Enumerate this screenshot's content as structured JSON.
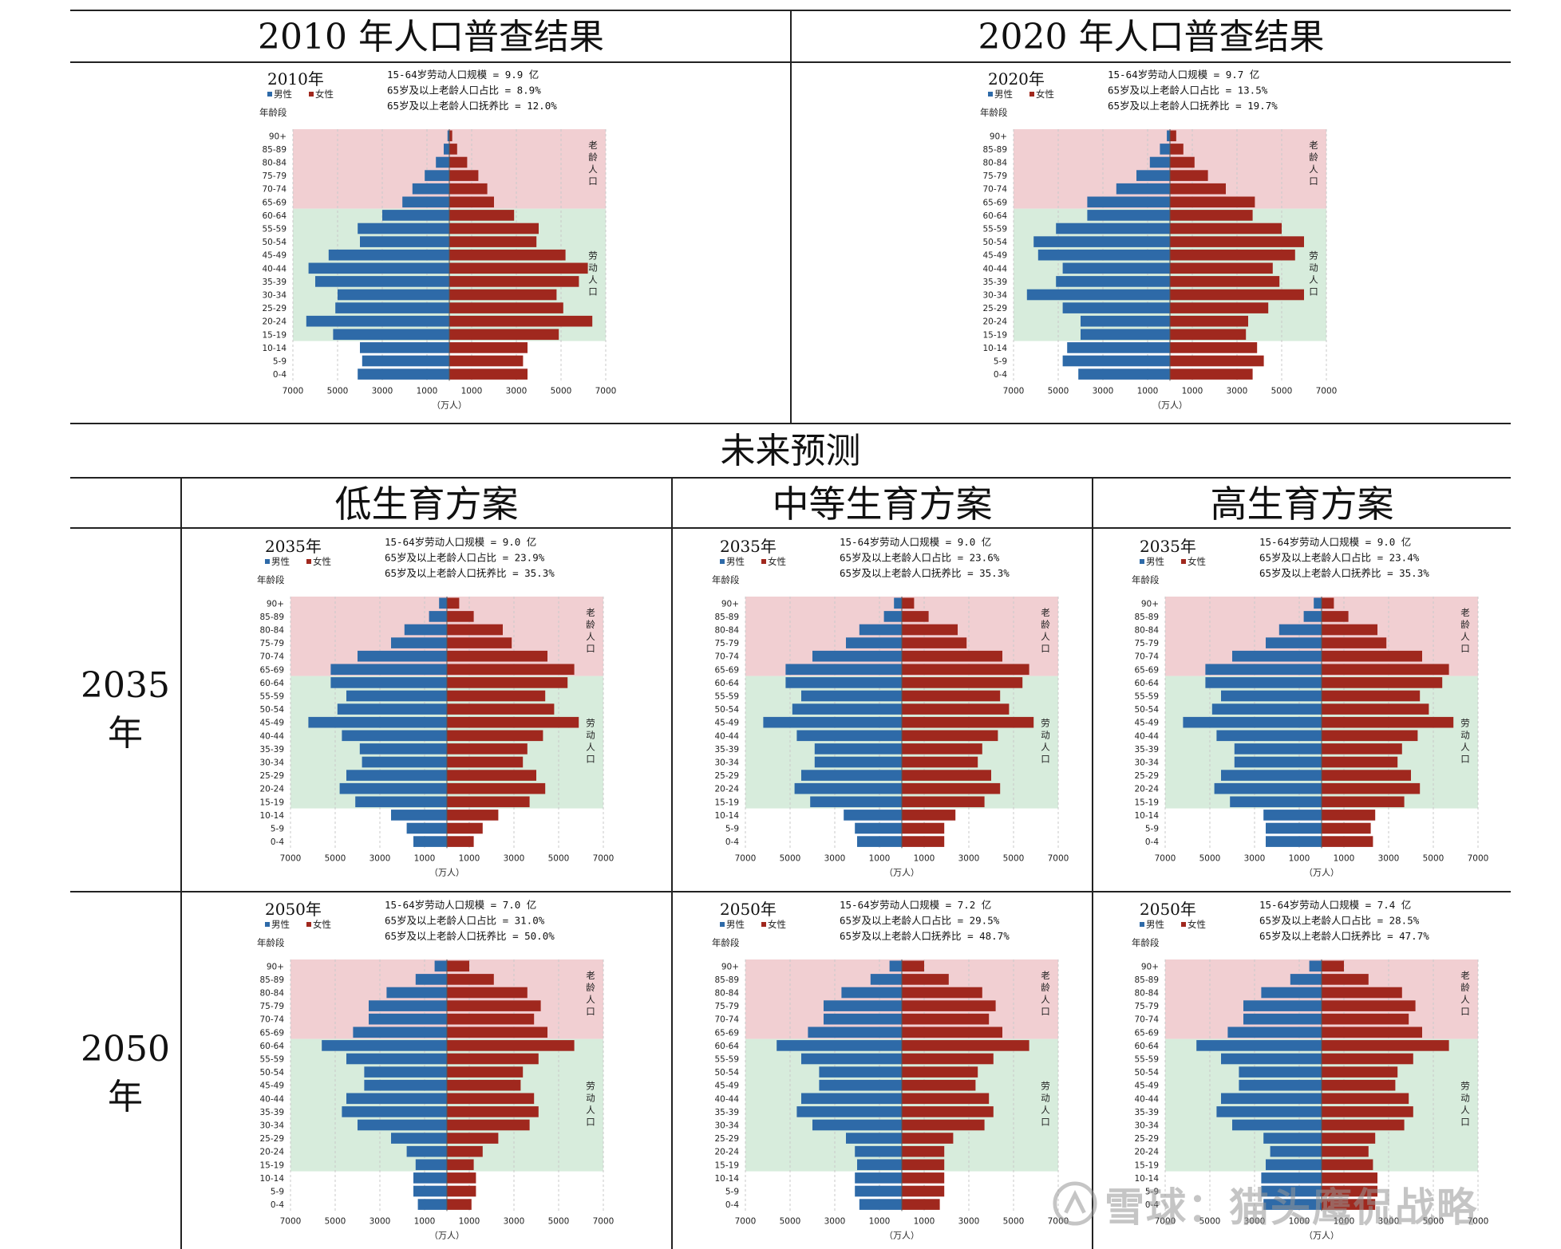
{
  "headers": {
    "census_2010": "2010 年人口普查结果",
    "census_2020": "2020 年人口普查结果",
    "future": "未来预测",
    "low": "低生育方案",
    "mid": "中等生育方案",
    "high": "高生育方案",
    "row_2035_num": "2035",
    "row_2035_unit": "年",
    "row_2050_num": "2050",
    "row_2050_unit": "年"
  },
  "watermark": "雪球：猫头鹰侃战略",
  "colors": {
    "male": "#2e6aa8",
    "female": "#a0281e",
    "elderly_band": "#f1cfd2",
    "working_band": "#d7ecdc"
  },
  "chart_data": [
    {
      "type": "bar",
      "name": "2010",
      "year_label": "2010年",
      "legend": [
        "男性",
        "女性"
      ],
      "stats": [
        "15-64岁劳动人口规模 = 9.9 亿",
        "65岁及以上老龄人口占比 = 8.9%",
        "65岁及以上老龄人口抚养比 = 12.0%"
      ],
      "ylabel": "年龄段",
      "xlabel": "（万人）",
      "categories": [
        "0-4",
        "5-9",
        "10-14",
        "15-19",
        "20-24",
        "25-29",
        "30-34",
        "35-39",
        "40-44",
        "45-49",
        "50-54",
        "55-59",
        "60-64",
        "65-69",
        "70-74",
        "75-79",
        "80-84",
        "85-89",
        "90+"
      ],
      "series": [
        {
          "name": "男性",
          "values": [
            4100,
            3900,
            4000,
            5200,
            6400,
            5100,
            5000,
            6000,
            6300,
            5400,
            4000,
            4100,
            3000,
            2100,
            1650,
            1100,
            600,
            250,
            80
          ]
        },
        {
          "name": "女性",
          "values": [
            3500,
            3300,
            3500,
            4900,
            6400,
            5100,
            4800,
            5800,
            6200,
            5200,
            3900,
            4000,
            2900,
            2000,
            1700,
            1300,
            800,
            350,
            130
          ]
        }
      ],
      "xticks": [
        "7000",
        "5000",
        "3000",
        "1000",
        "1000",
        "3000",
        "5000",
        "7000"
      ],
      "xlim": [
        -7000,
        7000
      ],
      "band_labels": {
        "elderly": "老龄人口",
        "working": "劳动人口"
      }
    },
    {
      "type": "bar",
      "name": "2020",
      "year_label": "2020年",
      "legend": [
        "男性",
        "女性"
      ],
      "stats": [
        "15-64岁劳动人口规模 = 9.7 亿",
        "65岁及以上老龄人口占比 = 13.5%",
        "65岁及以上老龄人口抚养比 = 19.7%"
      ],
      "ylabel": "年龄段",
      "xlabel": "（万人）",
      "categories": [
        "0-4",
        "5-9",
        "10-14",
        "15-19",
        "20-24",
        "25-29",
        "30-34",
        "35-39",
        "40-44",
        "45-49",
        "50-54",
        "55-59",
        "60-64",
        "65-69",
        "70-74",
        "75-79",
        "80-84",
        "85-89",
        "90+"
      ],
      "series": [
        {
          "name": "男性",
          "values": [
            4100,
            4800,
            4600,
            4000,
            4000,
            4800,
            6400,
            5100,
            4800,
            5900,
            6100,
            5100,
            3700,
            3700,
            2400,
            1500,
            900,
            450,
            140
          ]
        },
        {
          "name": "女性",
          "values": [
            3700,
            4200,
            3900,
            3400,
            3500,
            4400,
            6000,
            4900,
            4600,
            5600,
            6000,
            5000,
            3700,
            3800,
            2500,
            1700,
            1100,
            600,
            280
          ]
        }
      ],
      "xticks": [
        "7000",
        "5000",
        "3000",
        "1000",
        "1000",
        "3000",
        "5000",
        "7000"
      ],
      "xlim": [
        -7000,
        7000
      ],
      "band_labels": {
        "elderly": "老龄人口",
        "working": "劳动人口"
      }
    },
    {
      "type": "bar",
      "name": "2035-low",
      "year_label": "2035年",
      "legend": [
        "男性",
        "女性"
      ],
      "stats": [
        "15-64岁劳动人口规模 = 9.0 亿",
        "65岁及以上老龄人口占比 = 23.9%",
        "65岁及以上老龄人口抚养比 = 35.3%"
      ],
      "ylabel": "年龄段",
      "xlabel": "（万人）",
      "categories": [
        "0-4",
        "5-9",
        "10-14",
        "15-19",
        "20-24",
        "25-29",
        "30-34",
        "35-39",
        "40-44",
        "45-49",
        "50-54",
        "55-59",
        "60-64",
        "65-69",
        "70-74",
        "75-79",
        "80-84",
        "85-89",
        "90+"
      ],
      "series": [
        {
          "name": "男性",
          "values": [
            1500,
            1800,
            2500,
            4100,
            4800,
            4500,
            3800,
            3900,
            4700,
            6200,
            4900,
            4500,
            5200,
            5200,
            4000,
            2500,
            1900,
            800,
            350
          ]
        },
        {
          "name": "女性",
          "values": [
            1200,
            1600,
            2300,
            3700,
            4400,
            4000,
            3400,
            3600,
            4300,
            5900,
            4800,
            4400,
            5400,
            5700,
            4500,
            2900,
            2500,
            1200,
            550
          ]
        }
      ],
      "xticks": [
        "7000",
        "5000",
        "3000",
        "1000",
        "1000",
        "3000",
        "5000",
        "7000"
      ],
      "xlim": [
        -7000,
        7000
      ],
      "band_labels": {
        "elderly": "老龄人口",
        "working": "劳动人口"
      }
    },
    {
      "type": "bar",
      "name": "2035-mid",
      "year_label": "2035年",
      "legend": [
        "男性",
        "女性"
      ],
      "stats": [
        "15-64岁劳动人口规模 = 9.0 亿",
        "65岁及以上老龄人口占比 = 23.6%",
        "65岁及以上老龄人口抚养比 = 35.3%"
      ],
      "ylabel": "年龄段",
      "xlabel": "（万人）",
      "categories": [
        "0-4",
        "5-9",
        "10-14",
        "15-19",
        "20-24",
        "25-29",
        "30-34",
        "35-39",
        "40-44",
        "45-49",
        "50-54",
        "55-59",
        "60-64",
        "65-69",
        "70-74",
        "75-79",
        "80-84",
        "85-89",
        "90+"
      ],
      "series": [
        {
          "name": "男性",
          "values": [
            2000,
            2100,
            2600,
            4100,
            4800,
            4500,
            3900,
            3900,
            4700,
            6200,
            4900,
            4500,
            5200,
            5200,
            4000,
            2500,
            1900,
            800,
            350
          ]
        },
        {
          "name": "女性",
          "values": [
            1900,
            1900,
            2400,
            3700,
            4400,
            4000,
            3400,
            3600,
            4300,
            5900,
            4800,
            4400,
            5400,
            5700,
            4500,
            2900,
            2500,
            1200,
            550
          ]
        }
      ],
      "xticks": [
        "7000",
        "5000",
        "3000",
        "1000",
        "1000",
        "3000",
        "5000",
        "7000"
      ],
      "xlim": [
        -7000,
        7000
      ],
      "band_labels": {
        "elderly": "老龄人口",
        "working": "劳动人口"
      }
    },
    {
      "type": "bar",
      "name": "2035-high",
      "year_label": "2035年",
      "legend": [
        "男性",
        "女性"
      ],
      "stats": [
        "15-64岁劳动人口规模 = 9.0 亿",
        "65岁及以上老龄人口占比 = 23.4%",
        "65岁及以上老龄人口抚养比 = 35.3%"
      ],
      "ylabel": "年龄段",
      "xlabel": "（万人）",
      "categories": [
        "0-4",
        "5-9",
        "10-14",
        "15-19",
        "20-24",
        "25-29",
        "30-34",
        "35-39",
        "40-44",
        "45-49",
        "50-54",
        "55-59",
        "60-64",
        "65-69",
        "70-74",
        "75-79",
        "80-84",
        "85-89",
        "90+"
      ],
      "series": [
        {
          "name": "男性",
          "values": [
            2500,
            2500,
            2600,
            4100,
            4800,
            4500,
            3900,
            3900,
            4700,
            6200,
            4900,
            4500,
            5200,
            5200,
            4000,
            2500,
            1900,
            800,
            350
          ]
        },
        {
          "name": "女性",
          "values": [
            2300,
            2200,
            2400,
            3700,
            4400,
            4000,
            3400,
            3600,
            4300,
            5900,
            4800,
            4400,
            5400,
            5700,
            4500,
            2900,
            2500,
            1200,
            550
          ]
        }
      ],
      "xticks": [
        "7000",
        "5000",
        "3000",
        "1000",
        "1000",
        "3000",
        "5000",
        "7000"
      ],
      "xlim": [
        -7000,
        7000
      ],
      "band_labels": {
        "elderly": "老龄人口",
        "working": "劳动人口"
      }
    },
    {
      "type": "bar",
      "name": "2050-low",
      "year_label": "2050年",
      "legend": [
        "男性",
        "女性"
      ],
      "stats": [
        "15-64岁劳动人口规模 = 7.0 亿",
        "65岁及以上老龄人口占比 = 31.0%",
        "65岁及以上老龄人口抚养比 = 50.0%"
      ],
      "ylabel": "年龄段",
      "xlabel": "（万人）",
      "categories": [
        "0-4",
        "5-9",
        "10-14",
        "15-19",
        "20-24",
        "25-29",
        "30-34",
        "35-39",
        "40-44",
        "45-49",
        "50-54",
        "55-59",
        "60-64",
        "65-69",
        "70-74",
        "75-79",
        "80-84",
        "85-89",
        "90+"
      ],
      "series": [
        {
          "name": "男性",
          "values": [
            1300,
            1500,
            1500,
            1400,
            1800,
            2500,
            4000,
            4700,
            4500,
            3700,
            3700,
            4500,
            5600,
            4200,
            3500,
            3500,
            2700,
            1400,
            550
          ]
        },
        {
          "name": "女性",
          "values": [
            1100,
            1300,
            1300,
            1200,
            1600,
            2300,
            3700,
            4100,
            3900,
            3300,
            3400,
            4100,
            5700,
            4500,
            3900,
            4200,
            3600,
            2100,
            1000
          ]
        }
      ],
      "xticks": [
        "7000",
        "5000",
        "3000",
        "1000",
        "1000",
        "3000",
        "5000",
        "7000"
      ],
      "xlim": [
        -7000,
        7000
      ],
      "band_labels": {
        "elderly": "老龄人口",
        "working": "劳动人口"
      }
    },
    {
      "type": "bar",
      "name": "2050-mid",
      "year_label": "2050年",
      "legend": [
        "男性",
        "女性"
      ],
      "stats": [
        "15-64岁劳动人口规模 = 7.2 亿",
        "65岁及以上老龄人口占比 = 29.5%",
        "65岁及以上老龄人口抚养比 = 48.7%"
      ],
      "ylabel": "年龄段",
      "xlabel": "（万人）",
      "categories": [
        "0-4",
        "5-9",
        "10-14",
        "15-19",
        "20-24",
        "25-29",
        "30-34",
        "35-39",
        "40-44",
        "45-49",
        "50-54",
        "55-59",
        "60-64",
        "65-69",
        "70-74",
        "75-79",
        "80-84",
        "85-89",
        "90+"
      ],
      "series": [
        {
          "name": "男性",
          "values": [
            1900,
            2100,
            2100,
            2000,
            2100,
            2500,
            4000,
            4700,
            4500,
            3700,
            3700,
            4500,
            5600,
            4200,
            3500,
            3500,
            2700,
            1400,
            550
          ]
        },
        {
          "name": "女性",
          "values": [
            1700,
            1900,
            1900,
            1900,
            1900,
            2300,
            3700,
            4100,
            3900,
            3300,
            3400,
            4100,
            5700,
            4500,
            3900,
            4200,
            3600,
            2100,
            1000
          ]
        }
      ],
      "xticks": [
        "7000",
        "5000",
        "3000",
        "1000",
        "1000",
        "3000",
        "5000",
        "7000"
      ],
      "xlim": [
        -7000,
        7000
      ],
      "band_labels": {
        "elderly": "老龄人口",
        "working": "劳动人口"
      }
    },
    {
      "type": "bar",
      "name": "2050-high",
      "year_label": "2050年",
      "legend": [
        "男性",
        "女性"
      ],
      "stats": [
        "15-64岁劳动人口规模 = 7.4 亿",
        "65岁及以上老龄人口占比 = 28.5%",
        "65岁及以上老龄人口抚养比 = 47.7%"
      ],
      "ylabel": "年龄段",
      "xlabel": "（万人）",
      "categories": [
        "0-4",
        "5-9",
        "10-14",
        "15-19",
        "20-24",
        "25-29",
        "30-34",
        "35-39",
        "40-44",
        "45-49",
        "50-54",
        "55-59",
        "60-64",
        "65-69",
        "70-74",
        "75-79",
        "80-84",
        "85-89",
        "90+"
      ],
      "series": [
        {
          "name": "男性",
          "values": [
            2600,
            2700,
            2700,
            2500,
            2300,
            2600,
            4000,
            4700,
            4500,
            3700,
            3700,
            4500,
            5600,
            4200,
            3500,
            3500,
            2700,
            1400,
            550
          ]
        },
        {
          "name": "女性",
          "values": [
            2400,
            2500,
            2500,
            2300,
            2100,
            2400,
            3700,
            4100,
            3900,
            3300,
            3400,
            4100,
            5700,
            4500,
            3900,
            4200,
            3600,
            2100,
            1000
          ]
        }
      ],
      "xticks": [
        "7000",
        "5000",
        "3000",
        "1000",
        "1000",
        "3000",
        "5000",
        "7000"
      ],
      "xlim": [
        -7000,
        7000
      ],
      "band_labels": {
        "elderly": "老龄人口",
        "working": "劳动人口"
      }
    }
  ]
}
